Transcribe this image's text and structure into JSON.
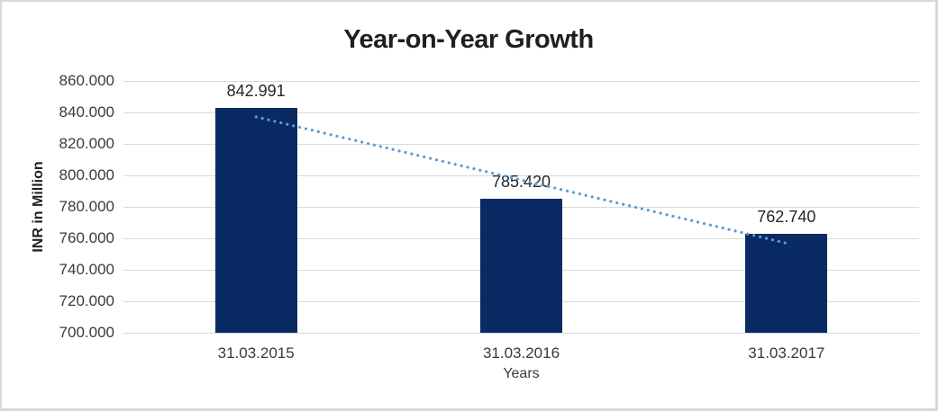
{
  "chart_data": {
    "type": "bar",
    "title": "Year-on-Year Growth",
    "xlabel": "Years",
    "ylabel": "INR in Million",
    "categories": [
      "31.03.2015",
      "31.03.2016",
      "31.03.2017"
    ],
    "values": [
      842991,
      785420,
      762740
    ],
    "value_labels": [
      "842.991",
      "785.420",
      "762.740"
    ],
    "ylim": [
      700000,
      860000
    ],
    "ytick_step": 20000,
    "ytick_labels": [
      "700.000",
      "720.000",
      "740.000",
      "760.000",
      "780.000",
      "800.000",
      "820.000",
      "840.000",
      "860.000"
    ],
    "grid": true,
    "legend": "none",
    "bar_color": "#0a2a63",
    "gridline_color": "#d9d9d9",
    "frame_color": "#d8d8d8",
    "trendline": {
      "type": "linear",
      "style": "dotted",
      "color": "#5b9bd5"
    }
  }
}
